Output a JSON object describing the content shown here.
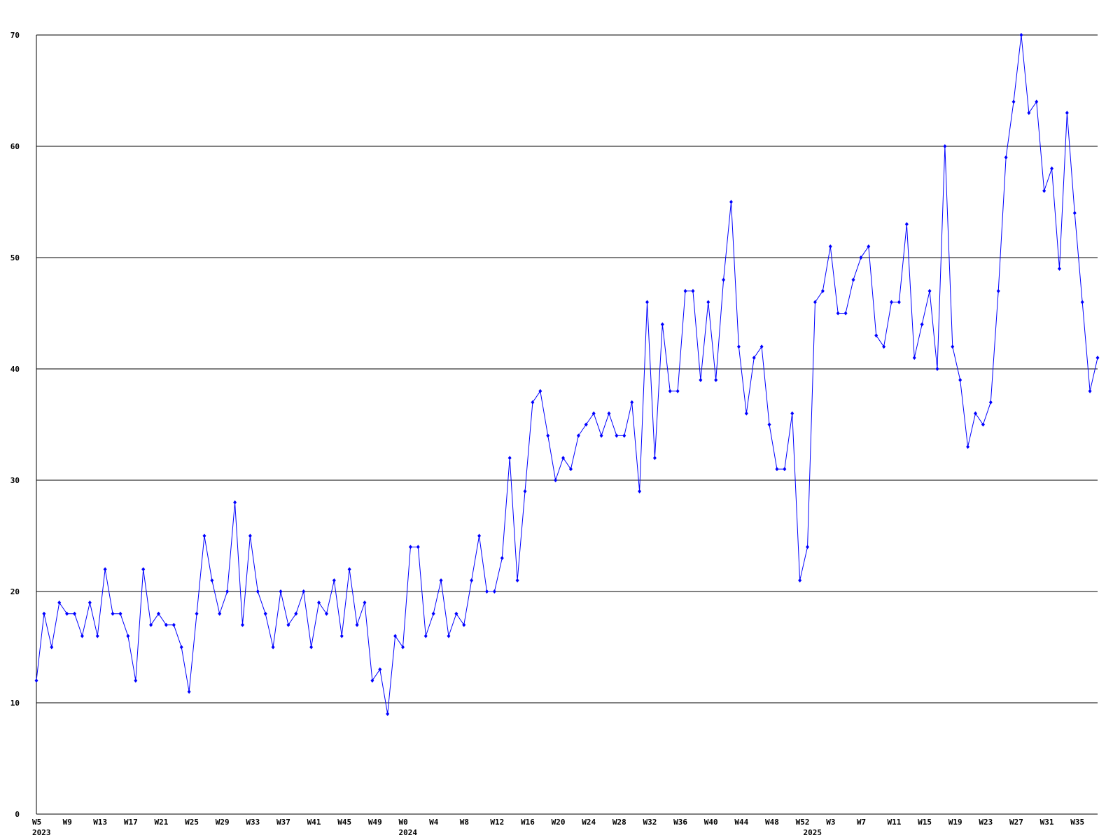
{
  "chart_data": {
    "type": "line",
    "color": "#0000ff",
    "grid": true,
    "ylim": [
      0,
      70
    ],
    "yticks": [
      0,
      10,
      20,
      30,
      40,
      50,
      60,
      70
    ],
    "categories": [
      "W5",
      null,
      null,
      null,
      "W9",
      null,
      null,
      null,
      "W13",
      null,
      null,
      null,
      "W17",
      null,
      null,
      null,
      "W21",
      null,
      null,
      null,
      "W25",
      null,
      null,
      null,
      "W29",
      null,
      null,
      null,
      "W33",
      null,
      null,
      null,
      "W37",
      null,
      null,
      null,
      "W41",
      null,
      null,
      null,
      "W45",
      null,
      null,
      null,
      "W49",
      null,
      null,
      null,
      "W0",
      null,
      null,
      null,
      "W4",
      null,
      null,
      null,
      "W8",
      null,
      null,
      null,
      "W12",
      null,
      null,
      null,
      "W16",
      null,
      null,
      null,
      "W20",
      null,
      null,
      null,
      "W24",
      null,
      null,
      null,
      "W28",
      null,
      null,
      null,
      "W32",
      null,
      null,
      null,
      "W36",
      null,
      null,
      null,
      "W40",
      null,
      null,
      null,
      "W44",
      null,
      null,
      null,
      "W48",
      null,
      null,
      null,
      "W52",
      null,
      null,
      null,
      "W3",
      null,
      null,
      null,
      "W7",
      null,
      null,
      null,
      "W11",
      null,
      null,
      null,
      "W15",
      null,
      null,
      null,
      "W19",
      null,
      null,
      null,
      "W23",
      null,
      null,
      null,
      "W27",
      null,
      null,
      null,
      "W31",
      null,
      null,
      null,
      "W35",
      null,
      null,
      null
    ],
    "year_labels": [
      "2023",
      null,
      null,
      null,
      null,
      null,
      null,
      null,
      null,
      null,
      null,
      null,
      null,
      null,
      null,
      null,
      null,
      null,
      null,
      null,
      null,
      null,
      null,
      null,
      null,
      null,
      null,
      null,
      null,
      null,
      null,
      null,
      null,
      null,
      null,
      null,
      null,
      null,
      null,
      null,
      null,
      null,
      null,
      null,
      null,
      null,
      null,
      null,
      "2024",
      null,
      null,
      null,
      null,
      null,
      null,
      null,
      null,
      null,
      null,
      null,
      null,
      null,
      null,
      null,
      null,
      null,
      null,
      null,
      null,
      null,
      null,
      null,
      null,
      null,
      null,
      null,
      null,
      null,
      null,
      null,
      null,
      null,
      null,
      null,
      null,
      null,
      null,
      null,
      null,
      null,
      null,
      null,
      null,
      null,
      null,
      null,
      null,
      null,
      null,
      null,
      null,
      "2025",
      null,
      null,
      null,
      null,
      null,
      null,
      null,
      null,
      null,
      null,
      null,
      null,
      null,
      null,
      null,
      null,
      null,
      null,
      null,
      null,
      null,
      null,
      null,
      null,
      null,
      null,
      null,
      null,
      null,
      null,
      null,
      null,
      null,
      null,
      null,
      null,
      null
    ],
    "values": [
      12,
      18,
      15,
      19,
      18,
      18,
      16,
      19,
      16,
      22,
      18,
      18,
      16,
      12,
      22,
      17,
      18,
      17,
      17,
      15,
      11,
      18,
      25,
      21,
      18,
      20,
      28,
      17,
      25,
      20,
      18,
      15,
      20,
      17,
      18,
      20,
      15,
      19,
      18,
      21,
      16,
      22,
      17,
      19,
      12,
      13,
      9,
      16,
      15,
      24,
      24,
      16,
      18,
      21,
      16,
      18,
      17,
      21,
      25,
      20,
      20,
      23,
      32,
      21,
      29,
      37,
      38,
      34,
      30,
      32,
      31,
      34,
      35,
      36,
      34,
      36,
      34,
      34,
      37,
      29,
      46,
      32,
      44,
      38,
      38,
      47,
      47,
      39,
      46,
      39,
      48,
      55,
      42,
      36,
      41,
      42,
      35,
      31,
      31,
      36,
      21,
      24,
      46,
      47,
      51,
      45,
      45,
      48,
      50,
      51,
      43,
      42,
      46,
      46,
      53,
      41,
      44,
      47,
      40,
      60,
      42,
      39,
      33,
      36,
      35,
      37,
      47,
      59,
      64,
      70,
      63,
      64,
      56,
      58,
      49,
      63,
      54,
      46,
      38,
      41
    ]
  }
}
